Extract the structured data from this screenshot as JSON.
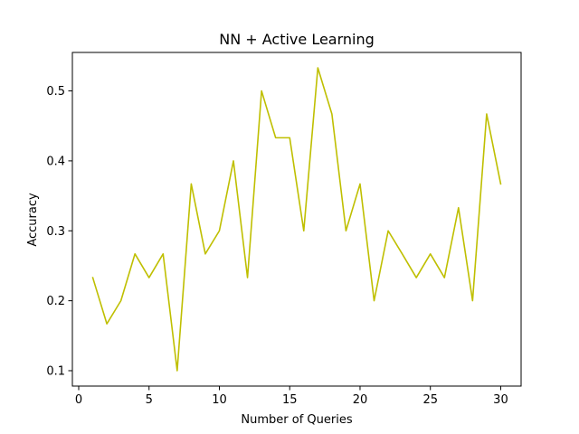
{
  "chart_data": {
    "type": "line",
    "title": "NN + Active Learning",
    "xlabel": "Number of Queries",
    "ylabel": "Accuracy",
    "xlim": [
      -0.45,
      31.45
    ],
    "ylim": [
      0.078,
      0.555
    ],
    "xticks": [
      0,
      5,
      10,
      15,
      20,
      25,
      30
    ],
    "yticks": [
      0.1,
      0.2,
      0.3,
      0.4,
      0.5
    ],
    "xtick_labels": [
      "0",
      "5",
      "10",
      "15",
      "20",
      "25",
      "30"
    ],
    "ytick_labels": [
      "0.1",
      "0.2",
      "0.3",
      "0.4",
      "0.5"
    ],
    "grid": false,
    "legend": "none",
    "series": [
      {
        "color": "#bfbf00",
        "x": [
          1,
          2,
          3,
          4,
          5,
          6,
          7,
          8,
          9,
          10,
          11,
          12,
          13,
          14,
          15,
          16,
          17,
          18,
          19,
          20,
          21,
          22,
          23,
          24,
          25,
          26,
          27,
          28,
          29,
          30
        ],
        "y": [
          0.233,
          0.167,
          0.2,
          0.267,
          0.233,
          0.267,
          0.1,
          0.367,
          0.267,
          0.3,
          0.4,
          0.233,
          0.5,
          0.433,
          0.433,
          0.3,
          0.533,
          0.467,
          0.3,
          0.367,
          0.2,
          0.3,
          0.267,
          0.233,
          0.267,
          0.233,
          0.333,
          0.2,
          0.467,
          0.367
        ]
      }
    ]
  }
}
